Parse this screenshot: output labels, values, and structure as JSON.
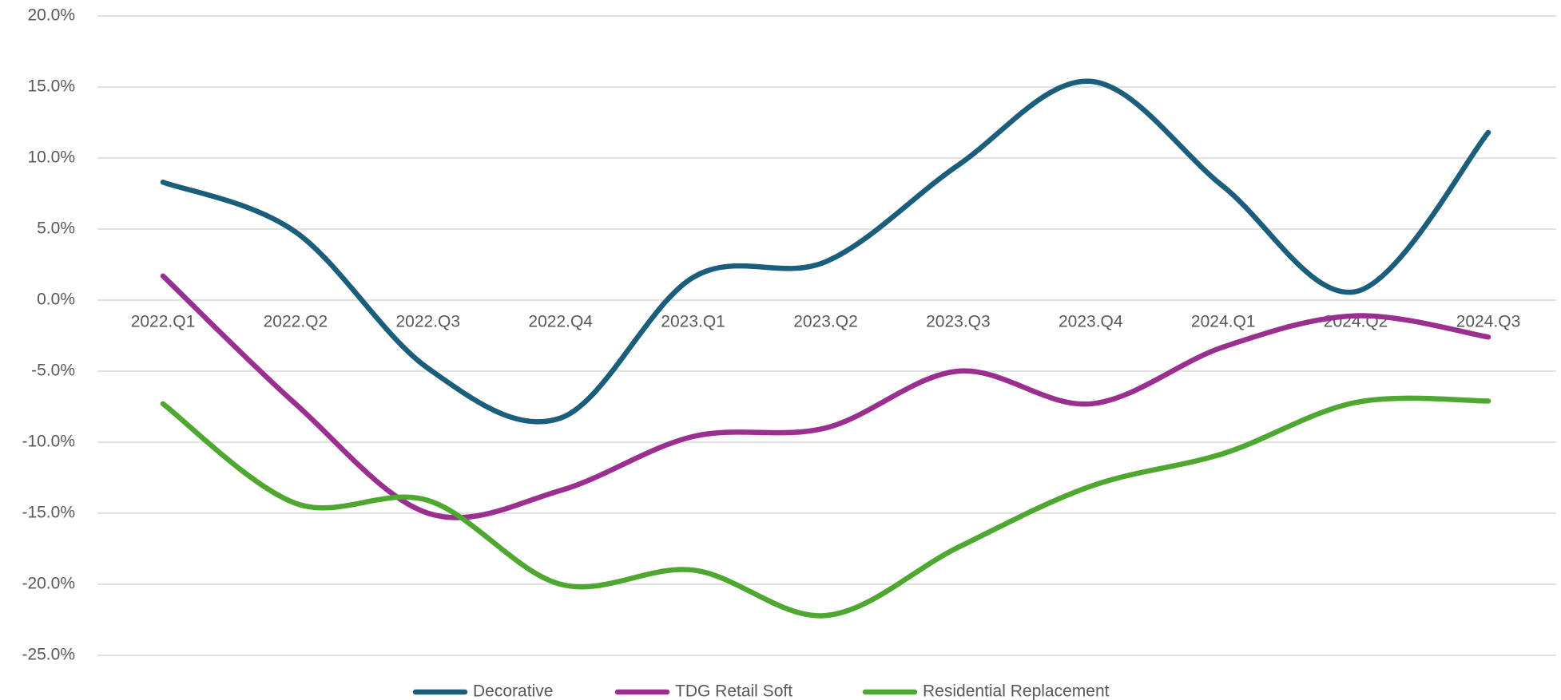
{
  "chart_data": {
    "type": "line",
    "categories": [
      "2022.Q1",
      "2022.Q2",
      "2022.Q3",
      "2022.Q4",
      "2023.Q1",
      "2023.Q2",
      "2023.Q3",
      "2023.Q4",
      "2024.Q1",
      "2024.Q2",
      "2024.Q3"
    ],
    "series": [
      {
        "name": "Decorative",
        "color": "#1b5e7b",
        "values": [
          8.3,
          4.8,
          -4.8,
          -8.3,
          1.6,
          2.7,
          9.5,
          15.4,
          8.0,
          0.6,
          11.8
        ]
      },
      {
        "name": "TDG Retail Soft",
        "color": "#9b2f8f",
        "values": [
          1.7,
          -7.3,
          -15.0,
          -13.4,
          -9.6,
          -9.0,
          -5.0,
          -7.3,
          -3.3,
          -1.1,
          -2.6
        ]
      },
      {
        "name": "Residential Replacement",
        "color": "#4ea72e",
        "values": [
          -7.3,
          -14.3,
          -14.1,
          -20.0,
          -19.0,
          -22.2,
          -17.4,
          -13.1,
          -10.8,
          -7.2,
          -7.1
        ]
      }
    ],
    "ylim": [
      -25,
      20
    ],
    "yticks": [
      {
        "value": -25,
        "label": "-25.0%"
      },
      {
        "value": -20,
        "label": "-20.0%"
      },
      {
        "value": -15,
        "label": "-15.0%"
      },
      {
        "value": -10,
        "label": "-10.0%"
      },
      {
        "value": -5,
        "label": "-5.0%"
      },
      {
        "value": 0,
        "label": "0.0%"
      },
      {
        "value": 5,
        "label": "5.0%"
      },
      {
        "value": 10,
        "label": "10.0%"
      },
      {
        "value": 15,
        "label": "15.0%"
      },
      {
        "value": 20,
        "label": "20.0%"
      }
    ],
    "grid": true,
    "smooth": true,
    "legend": "bottom"
  }
}
